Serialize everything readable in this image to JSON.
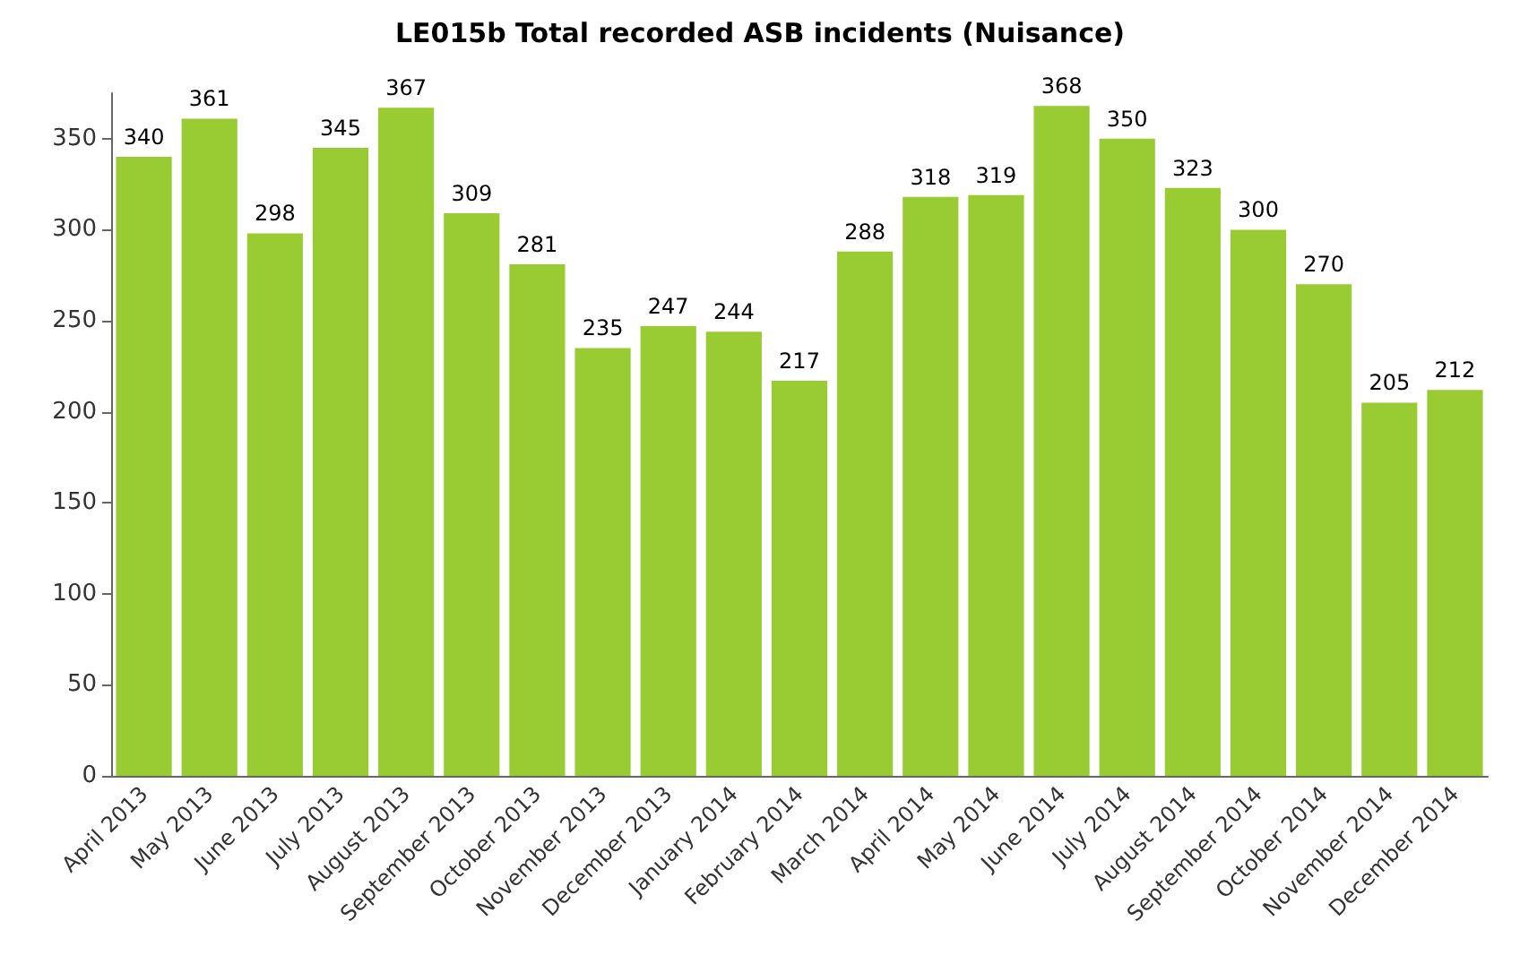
{
  "chart_data": {
    "type": "bar",
    "title": "LE015b Total recorded ASB incidents (Nuisance)",
    "categories": [
      "April 2013",
      "May 2013",
      "June 2013",
      "July 2013",
      "August 2013",
      "September 2013",
      "October 2013",
      "November 2013",
      "December 2013",
      "January 2014",
      "February 2014",
      "March 2014",
      "April 2014",
      "May 2014",
      "June 2014",
      "July 2014",
      "August 2014",
      "September 2014",
      "October 2014",
      "November 2014",
      "December 2014"
    ],
    "values": [
      340,
      361,
      298,
      345,
      367,
      309,
      281,
      235,
      247,
      244,
      217,
      288,
      318,
      319,
      368,
      350,
      323,
      300,
      270,
      205,
      212
    ],
    "color": "#99cc33",
    "ylim": [
      0,
      375
    ],
    "yticks": [
      0,
      50,
      100,
      150,
      200,
      250,
      300,
      350
    ],
    "grid": false,
    "data_labels": true
  }
}
